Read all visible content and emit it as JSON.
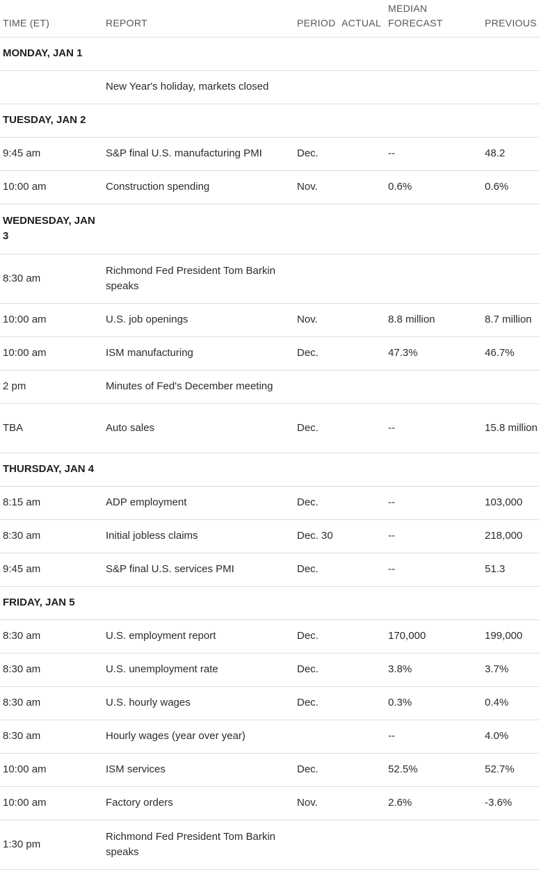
{
  "headers": {
    "time": "TIME (ET)",
    "report": "REPORT",
    "period": "PERIOD",
    "actual": "ACTUAL",
    "forecast_line1": "MEDIAN",
    "forecast_line2": "FORECAST",
    "previous": "PREVIOUS"
  },
  "days": [
    {
      "day": "MONDAY, JAN 1",
      "rows": [
        {
          "time": "",
          "report": "New Year's holiday, markets closed",
          "period": "",
          "actual": "",
          "forecast": "",
          "previous": ""
        }
      ]
    },
    {
      "day": "TUESDAY, JAN 2",
      "rows": [
        {
          "time": "9:45 am",
          "report": "S&P final U.S. manufacturing PMI",
          "period": "Dec.",
          "actual": "",
          "forecast": "--",
          "previous": "48.2"
        },
        {
          "time": "10:00 am",
          "report": "Construction spending",
          "period": "Nov.",
          "actual": "",
          "forecast": "0.6%",
          "previous": "0.6%"
        }
      ]
    },
    {
      "day": "WEDNESDAY, JAN 3",
      "rows": [
        {
          "time": "8:30 am",
          "report": "Richmond Fed President Tom Barkin speaks",
          "period": "",
          "actual": "",
          "forecast": "",
          "previous": ""
        },
        {
          "time": "10:00 am",
          "report": "U.S. job openings",
          "period": "Nov.",
          "actual": "",
          "forecast": "8.8 million",
          "previous": "8.7 million"
        },
        {
          "time": "10:00 am",
          "report": "ISM manufacturing",
          "period": "Dec.",
          "actual": "",
          "forecast": "47.3%",
          "previous": "46.7%"
        },
        {
          "time": "2 pm",
          "report": "Minutes of Fed's December meeting",
          "period": "",
          "actual": "",
          "forecast": "",
          "previous": ""
        },
        {
          "time": "TBA",
          "report": "Auto sales",
          "period": "Dec.",
          "actual": "",
          "forecast": "--",
          "previous": "15.8 million"
        }
      ]
    },
    {
      "day": "THURSDAY, JAN 4",
      "rows": [
        {
          "time": "8:15 am",
          "report": "ADP employment",
          "period": "Dec.",
          "actual": "",
          "forecast": "--",
          "previous": "103,000"
        },
        {
          "time": "8:30 am",
          "report": "Initial jobless claims",
          "period": "Dec. 30",
          "actual": "",
          "forecast": "--",
          "previous": "218,000"
        },
        {
          "time": "9:45 am",
          "report": "S&P final U.S. services PMI",
          "period": "Dec.",
          "actual": "",
          "forecast": "--",
          "previous": "51.3"
        }
      ]
    },
    {
      "day": "FRIDAY, JAN 5",
      "rows": [
        {
          "time": "8:30 am",
          "report": "U.S. employment report",
          "period": "Dec.",
          "actual": "",
          "forecast": "170,000",
          "previous": "199,000"
        },
        {
          "time": "8:30 am",
          "report": "U.S. unemployment rate",
          "period": "Dec.",
          "actual": "",
          "forecast": "3.8%",
          "previous": "3.7%"
        },
        {
          "time": "8:30 am",
          "report": "U.S. hourly wages",
          "period": "Dec.",
          "actual": "",
          "forecast": "0.3%",
          "previous": "0.4%"
        },
        {
          "time": "8:30 am",
          "report": "Hourly wages (year over year)",
          "period": "",
          "actual": "",
          "forecast": "--",
          "previous": "4.0%"
        },
        {
          "time": "10:00 am",
          "report": "ISM services",
          "period": "Dec.",
          "actual": "",
          "forecast": "52.5%",
          "previous": "52.7%"
        },
        {
          "time": "10:00 am",
          "report": "Factory orders",
          "period": "Nov.",
          "actual": "",
          "forecast": "2.6%",
          "previous": "-3.6%"
        },
        {
          "time": "1:30 pm",
          "report": "Richmond Fed President Tom Barkin speaks",
          "period": "",
          "actual": "",
          "forecast": "",
          "previous": ""
        }
      ]
    }
  ]
}
